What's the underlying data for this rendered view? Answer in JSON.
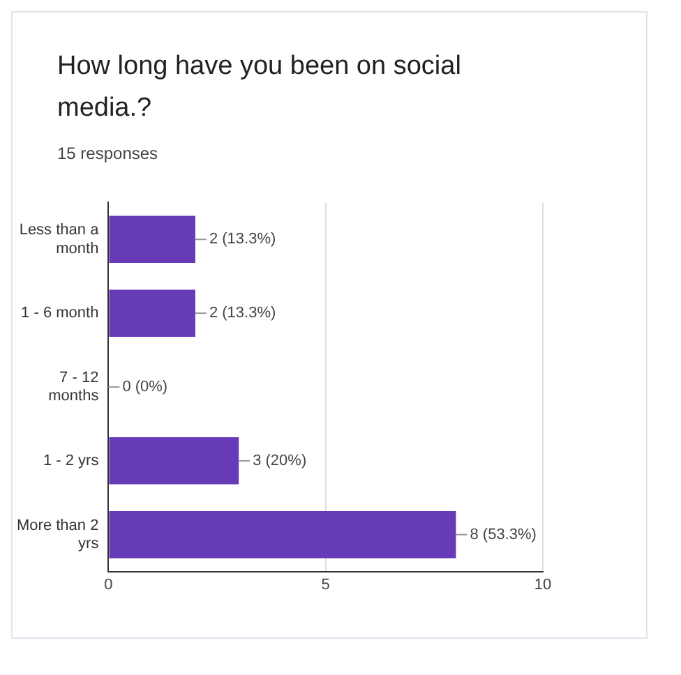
{
  "chart_data": {
    "type": "bar",
    "orientation": "horizontal",
    "title": "How long have you been on social media.?",
    "subtitle": "15 responses",
    "categories": [
      "Less than a month",
      "1 - 6 month",
      "7 - 12 months",
      "1 - 2 yrs",
      "More than 2 yrs"
    ],
    "values": [
      2,
      2,
      0,
      3,
      8
    ],
    "value_labels": [
      "2 (13.3%)",
      "2 (13.3%)",
      "0 (0%)",
      "3 (20%)",
      "8 (53.3%)"
    ],
    "color": "#673ab7",
    "xlim": [
      0,
      10
    ],
    "xticks": [
      0,
      5,
      10
    ],
    "grid": "x"
  }
}
